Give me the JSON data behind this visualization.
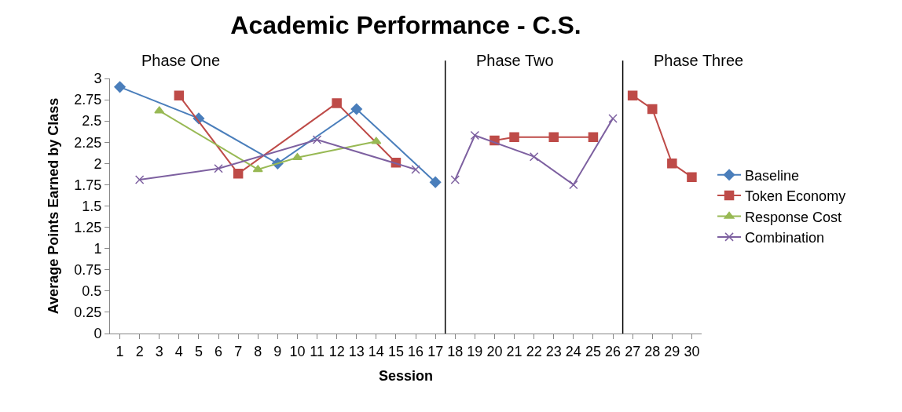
{
  "chart_data": {
    "type": "line",
    "title": "Academic Performance - C.S.",
    "xlabel": "Session",
    "ylabel": "Average Points Earned by Class",
    "xlim": [
      0.5,
      30.5
    ],
    "xticks": [
      1,
      2,
      3,
      4,
      5,
      6,
      7,
      8,
      9,
      10,
      11,
      12,
      13,
      14,
      15,
      16,
      17,
      18,
      19,
      20,
      21,
      22,
      23,
      24,
      25,
      26,
      27,
      28,
      29,
      30
    ],
    "ylim": [
      0,
      3
    ],
    "yticks": [
      0,
      0.25,
      0.5,
      0.75,
      1,
      1.25,
      1.5,
      1.75,
      2,
      2.25,
      2.5,
      2.75,
      3
    ],
    "legend": "right",
    "series": [
      {
        "name": "Baseline",
        "color": "#4a7ebb",
        "marker": "diamond",
        "x": [
          1,
          5,
          9,
          13,
          17
        ],
        "values": [
          2.9,
          2.53,
          2.0,
          2.64,
          1.78
        ]
      },
      {
        "name": "Token Economy",
        "color": "#be4b48",
        "marker": "square",
        "x": [
          4,
          7,
          12,
          15,
          17,
          20,
          21,
          23,
          25,
          26,
          27,
          28,
          29,
          30
        ],
        "values": [
          2.8,
          1.88,
          2.71,
          2.01,
          null,
          2.27,
          2.31,
          2.31,
          2.31,
          null,
          2.8,
          2.64,
          2.0,
          1.84
        ]
      },
      {
        "name": "Response Cost",
        "color": "#98b954",
        "marker": "triangle",
        "x": [
          3,
          8,
          10,
          14
        ],
        "values": [
          2.62,
          1.93,
          2.07,
          2.26
        ]
      },
      {
        "name": "Combination",
        "color": "#7d60a0",
        "marker": "cross",
        "x": [
          2,
          6,
          11,
          16,
          17,
          18,
          19,
          22,
          24,
          26
        ],
        "values": [
          1.81,
          1.94,
          2.28,
          1.93,
          null,
          1.81,
          2.33,
          2.08,
          1.75,
          2.53
        ]
      }
    ],
    "ref_lines": [
      {
        "axis": "x",
        "value": 17.5,
        "color": "#000000"
      },
      {
        "axis": "x",
        "value": 26.5,
        "color": "#000000"
      }
    ],
    "annotations": [
      "Phase One",
      "Phase Two",
      "Phase Three"
    ]
  }
}
